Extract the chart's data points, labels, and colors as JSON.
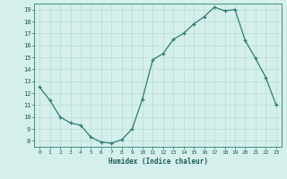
{
  "x": [
    0,
    1,
    2,
    3,
    4,
    5,
    6,
    7,
    8,
    9,
    10,
    11,
    12,
    13,
    14,
    15,
    16,
    17,
    18,
    19,
    20,
    21,
    22,
    23
  ],
  "y": [
    12.5,
    11.4,
    10.0,
    9.5,
    9.3,
    8.3,
    7.9,
    7.8,
    8.1,
    9.0,
    11.5,
    14.8,
    15.3,
    16.5,
    17.0,
    17.8,
    18.4,
    19.2,
    18.9,
    19.0,
    16.4,
    14.9,
    13.3,
    11.0
  ],
  "xlabel": "Humidex (Indice chaleur)",
  "line_color": "#2d7d6e",
  "marker_color": "#2d7d6e",
  "bg_color": "#d5efec",
  "grid_color": "#b8ddd9",
  "xlim": [
    -0.5,
    23.5
  ],
  "ylim": [
    7.5,
    19.5
  ],
  "xticks": [
    0,
    1,
    2,
    3,
    4,
    5,
    6,
    7,
    8,
    9,
    10,
    11,
    12,
    13,
    14,
    15,
    16,
    17,
    18,
    19,
    20,
    21,
    22,
    23
  ],
  "yticks": [
    8,
    9,
    10,
    11,
    12,
    13,
    14,
    15,
    16,
    17,
    18,
    19
  ]
}
